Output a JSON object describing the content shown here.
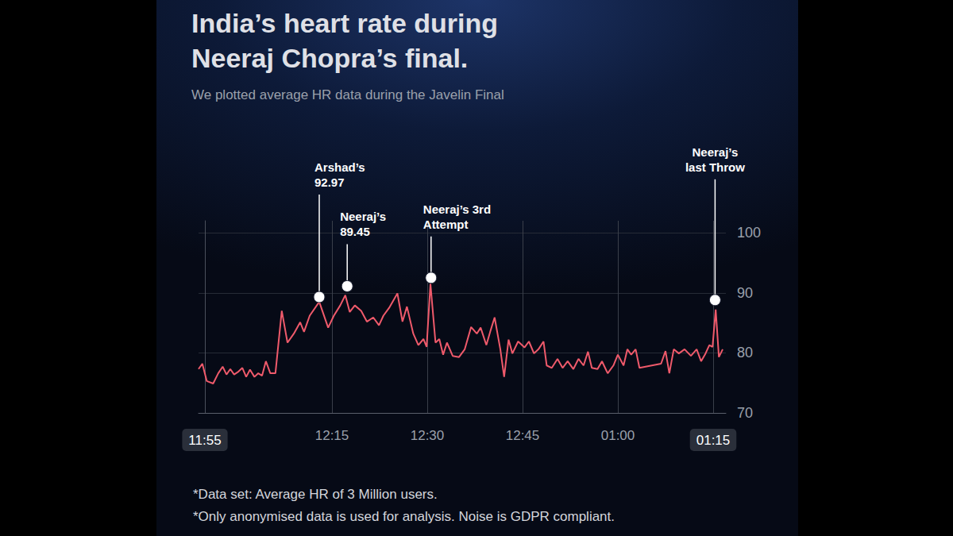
{
  "chart_data": {
    "type": "line",
    "title": "India’s heart rate during\nNeeraj Chopra’s final.",
    "subtitle": "We plotted average HR data during the Javelin Final",
    "notes": [
      "*Data set: Average HR of 3 Million users.",
      "*Only anonymised data is used for analysis. Noise is GDPR compliant."
    ],
    "x": [
      -1.0,
      -0.4,
      0.3,
      1.3,
      2.1,
      2.8,
      3.4,
      4.0,
      4.6,
      5.3,
      5.9,
      6.5,
      7.1,
      7.8,
      8.4,
      9.0,
      9.6,
      10.3,
      11.1,
      12.1,
      13.0,
      14.0,
      15.0,
      15.6,
      16.5,
      18.0,
      19.4,
      20.3,
      21.3,
      22.1,
      22.8,
      23.6,
      24.6,
      25.5,
      26.5,
      27.4,
      28.1,
      29.0,
      30.3,
      31.1,
      31.8,
      32.8,
      33.6,
      34.4,
      34.9,
      35.5,
      36.3,
      36.9,
      37.5,
      38.1,
      39.0,
      40.0,
      40.9,
      41.9,
      42.8,
      43.4,
      44.3,
      44.9,
      45.6,
      46.5,
      47.1,
      47.8,
      48.4,
      49.3,
      50.3,
      51.0,
      51.8,
      52.5,
      53.3,
      53.8,
      54.6,
      55.5,
      56.3,
      57.1,
      58.0,
      58.8,
      59.6,
      60.3,
      60.9,
      61.8,
      62.5,
      63.4,
      64.3,
      65.0,
      65.9,
      66.5,
      67.1,
      67.8,
      68.4,
      71.8,
      72.5,
      73.1,
      73.8,
      74.6,
      75.5,
      76.5,
      77.4,
      78.1,
      78.8,
      79.4,
      79.9,
      80.4,
      80.9,
      81.5
    ],
    "values": [
      77.3,
      78.2,
      75.3,
      74.9,
      76.6,
      77.7,
      76.4,
      77.3,
      76.4,
      76.9,
      77.5,
      76.0,
      77.2,
      76.0,
      76.6,
      76.2,
      78.6,
      76.6,
      76.6,
      87.0,
      81.7,
      83.2,
      85.1,
      83.5,
      86.2,
      88.5,
      84.2,
      86.2,
      87.9,
      89.6,
      86.8,
      87.9,
      87.0,
      85.2,
      85.9,
      84.6,
      86.2,
      87.5,
      89.9,
      85.2,
      87.7,
      83.2,
      81.3,
      82.3,
      81.0,
      91.5,
      81.7,
      82.3,
      79.7,
      81.7,
      79.5,
      79.3,
      80.6,
      84.3,
      83.2,
      84.2,
      81.3,
      83.5,
      85.9,
      80.6,
      76.0,
      82.2,
      79.9,
      81.9,
      80.9,
      81.9,
      79.9,
      80.6,
      81.9,
      77.9,
      77.5,
      79.0,
      77.5,
      78.6,
      77.3,
      79.0,
      77.9,
      80.2,
      77.5,
      77.3,
      78.6,
      76.6,
      77.9,
      79.7,
      77.9,
      80.6,
      79.7,
      80.6,
      77.5,
      78.2,
      80.3,
      76.6,
      80.6,
      79.9,
      80.6,
      79.5,
      80.6,
      78.6,
      79.9,
      81.3,
      81.0,
      87.2,
      79.3,
      80.6
    ],
    "color": "#ef5a6b",
    "marker": "none",
    "xlim": [
      -1,
      82
    ],
    "xticks": [
      {
        "value": 0,
        "label": "11:55"
      },
      {
        "value": 20,
        "label": "12:15"
      },
      {
        "value": 35,
        "label": "12:30"
      },
      {
        "value": 50,
        "label": "12:45"
      },
      {
        "value": 65,
        "label": "01:00"
      },
      {
        "value": 80,
        "label": "01:15"
      }
    ],
    "ylim": [
      70,
      102
    ],
    "yticks": [
      70,
      80,
      90,
      100
    ],
    "grid": true,
    "annotations": [
      {
        "text": "Arshad’s\n92.97",
        "x": 18.0,
        "y": 89.3
      },
      {
        "text": "Neeraj’s\n89.45",
        "x": 22.4,
        "y": 91.1
      },
      {
        "text": "Neeraj’s 3rd\nAttempt",
        "x": 35.6,
        "y": 92.5
      },
      {
        "text": "Neeraj’s\nlast Throw",
        "x": 80.3,
        "y": 88.8
      }
    ]
  }
}
